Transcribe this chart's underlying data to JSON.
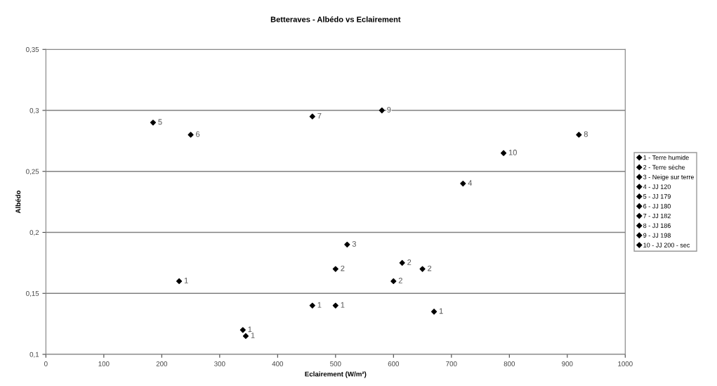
{
  "chart_data": {
    "type": "scatter",
    "title": "Betteraves - Albédo vs Eclairement",
    "xlabel": "Eclairement (W/m²)",
    "ylabel": "Albédo",
    "xlim": [
      0,
      1000
    ],
    "xticks": [
      0,
      100,
      200,
      300,
      400,
      500,
      600,
      700,
      800,
      900,
      1000
    ],
    "ylim": [
      0.1,
      0.35
    ],
    "yticks": [
      {
        "value": 0.1,
        "label": "0,1"
      },
      {
        "value": 0.15,
        "label": "0,15"
      },
      {
        "value": 0.2,
        "label": "0,2"
      },
      {
        "value": 0.25,
        "label": "0,25"
      },
      {
        "value": 0.3,
        "label": "0,3"
      },
      {
        "value": 0.35,
        "label": "0,35"
      }
    ],
    "grid": "y",
    "legend": "right",
    "marker": "diamond",
    "series": [
      {
        "name": "1 - Terre humide",
        "color": "#000000",
        "x": [
          230,
          340,
          345,
          460,
          500,
          670
        ],
        "values": [
          0.16,
          0.12,
          0.115,
          0.14,
          0.14,
          0.135
        ]
      },
      {
        "name": "2 - Terre sèche",
        "color": "#000000",
        "x": [
          500,
          615,
          650,
          600
        ],
        "values": [
          0.17,
          0.175,
          0.17,
          0.16
        ]
      },
      {
        "name": "3 - Neige sur terre",
        "color": "#000000",
        "x": [
          520
        ],
        "values": [
          0.19
        ]
      },
      {
        "name": "4 - JJ 120",
        "color": "#000000",
        "x": [
          720
        ],
        "values": [
          0.24
        ]
      },
      {
        "name": "5 - JJ 179",
        "color": "#000000",
        "x": [
          185
        ],
        "values": [
          0.29
        ]
      },
      {
        "name": "6 - JJ 180",
        "color": "#000000",
        "x": [
          250
        ],
        "values": [
          0.28
        ]
      },
      {
        "name": "7 - JJ 182",
        "color": "#000000",
        "x": [
          460
        ],
        "values": [
          0.295
        ]
      },
      {
        "name": "8 - JJ 186",
        "color": "#000000",
        "x": [
          920
        ],
        "values": [
          0.28
        ]
      },
      {
        "name": "9 - JJ 198",
        "color": "#000000",
        "x": [
          580
        ],
        "values": [
          0.3
        ]
      },
      {
        "name": "10 - JJ 200 - sec",
        "color": "#000000",
        "x": [
          790
        ],
        "values": [
          0.265
        ]
      }
    ],
    "annotations": [
      {
        "text": "1",
        "x": 230,
        "y": 0.16
      },
      {
        "text": "1",
        "x": 340,
        "y": 0.12
      },
      {
        "text": "1",
        "x": 345,
        "y": 0.115
      },
      {
        "text": "1",
        "x": 460,
        "y": 0.14
      },
      {
        "text": "1",
        "x": 500,
        "y": 0.14
      },
      {
        "text": "1",
        "x": 670,
        "y": 0.135
      },
      {
        "text": "2",
        "x": 500,
        "y": 0.17
      },
      {
        "text": "2",
        "x": 615,
        "y": 0.175
      },
      {
        "text": "2",
        "x": 650,
        "y": 0.17
      },
      {
        "text": "2",
        "x": 600,
        "y": 0.16
      },
      {
        "text": "3",
        "x": 520,
        "y": 0.19
      },
      {
        "text": "4",
        "x": 720,
        "y": 0.24
      },
      {
        "text": "5",
        "x": 185,
        "y": 0.29
      },
      {
        "text": "6",
        "x": 250,
        "y": 0.28
      },
      {
        "text": "7",
        "x": 460,
        "y": 0.295
      },
      {
        "text": "8",
        "x": 920,
        "y": 0.28
      },
      {
        "text": "9",
        "x": 580,
        "y": 0.3
      },
      {
        "text": "10",
        "x": 790,
        "y": 0.265
      }
    ]
  }
}
